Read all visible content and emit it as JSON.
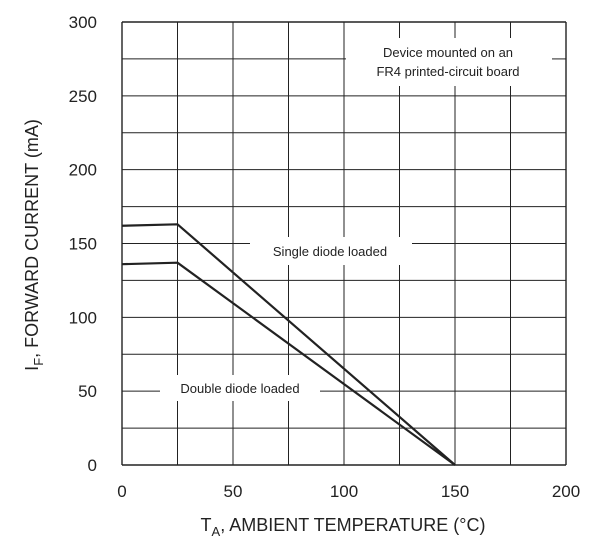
{
  "chart_data": {
    "type": "line",
    "title": "",
    "xlabel": {
      "main": "T",
      "sub": "A",
      "rest": ", AMBIENT TEMPERATURE (°C)"
    },
    "ylabel": {
      "main": "I",
      "sub": "F",
      "rest": ", FORWARD CURRENT (mA)"
    },
    "xlim": [
      0,
      200
    ],
    "ylim": [
      0,
      300
    ],
    "xticks": [
      0,
      50,
      100,
      150,
      200
    ],
    "yticks": [
      0,
      50,
      100,
      150,
      200,
      250,
      300
    ],
    "x_minor_step": 25,
    "y_minor_step": 25,
    "grid": true,
    "series": [
      {
        "name": "Single diode loaded",
        "x": [
          0,
          25,
          150
        ],
        "y": [
          162,
          163,
          0
        ]
      },
      {
        "name": "Double diode loaded",
        "x": [
          0,
          25,
          150
        ],
        "y": [
          136,
          137,
          0
        ]
      }
    ],
    "annotations": [
      {
        "lines": [
          "Device mounted on an",
          "FR4 printed-circuit board"
        ]
      }
    ],
    "colors": {
      "line": "#222222",
      "grid": "#222222"
    }
  }
}
